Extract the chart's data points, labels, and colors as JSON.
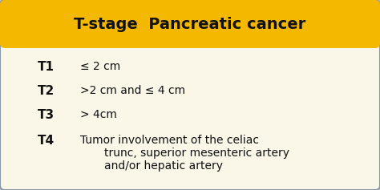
{
  "title": "T-stage  Pancreatic cancer",
  "title_bg_color": "#F5B800",
  "body_bg_color": "#FAF7E8",
  "outer_bg_color": "#C8C8C8",
  "border_color": "#8899AA",
  "text_color": "#111111",
  "title_text_color": "#111111",
  "rows": [
    {
      "stage": "T1",
      "desc": "≤ 2 cm"
    },
    {
      "stage": "T2",
      "desc": ">2 cm and ≤ 4 cm"
    },
    {
      "stage": "T3",
      "desc": "> 4cm"
    },
    {
      "stage": "T4",
      "desc_lines": [
        "Tumor involvement of the celiac",
        "trunc, superior mesenteric artery",
        "and/or hepatic artery"
      ]
    }
  ],
  "figsize": [
    4.74,
    2.37
  ],
  "dpi": 100
}
